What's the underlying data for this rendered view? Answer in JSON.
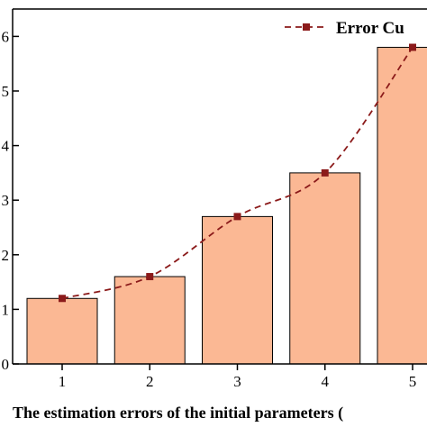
{
  "chart_data": {
    "type": "bar",
    "categories": [
      "1",
      "2",
      "3",
      "4",
      "5"
    ],
    "series": [
      {
        "type": "bar",
        "values": [
          1.2,
          1.6,
          2.7,
          3.5,
          5.8
        ],
        "color": "#fbb894",
        "edge_color": "#000000"
      },
      {
        "name": "Error Cu",
        "type": "line",
        "values": [
          1.2,
          1.6,
          2.7,
          3.5,
          5.8
        ],
        "color": "#8b1a1a",
        "line_style": "dashed",
        "marker": "square"
      }
    ],
    "y_tick_labels": [
      "0",
      "1",
      "2",
      "3",
      "4",
      "5",
      "6"
    ],
    "xlabel": "The estimation errors of the initial parameters (",
    "ylabel": "",
    "ylim": [
      0,
      6.3
    ],
    "legend_position": "top-right",
    "grid": false
  }
}
